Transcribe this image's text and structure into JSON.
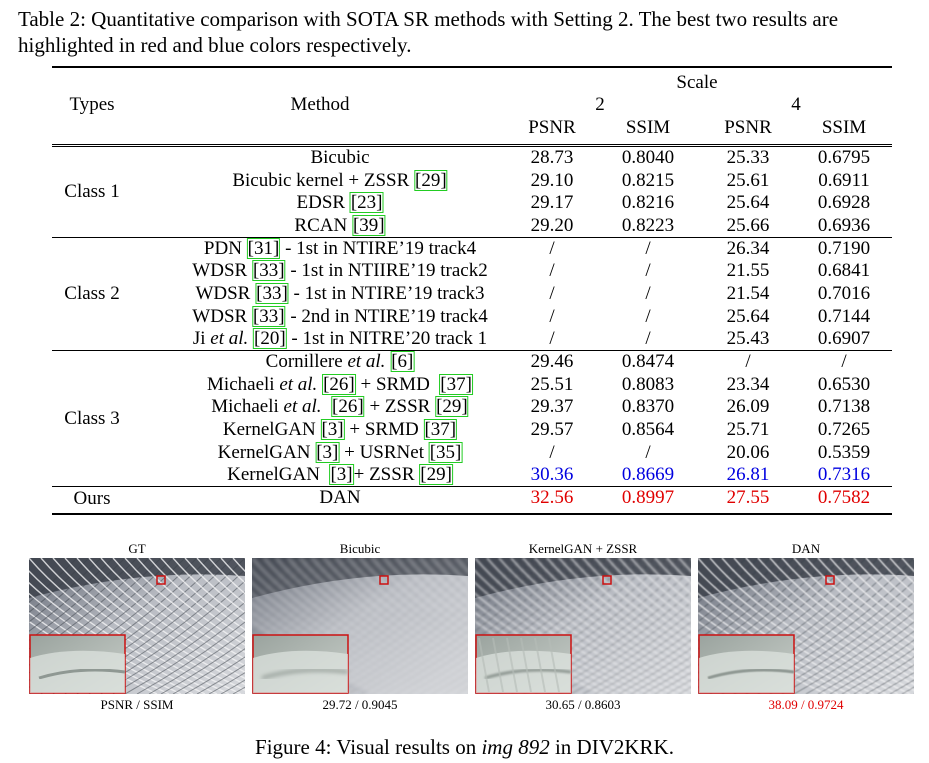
{
  "table_caption": "Table 2: Quantitative comparison with SOTA SR methods with Setting 2. The best two results are highlighted in red and blue colors respectively.",
  "header": {
    "types": "Types",
    "method": "Method",
    "scale": "Scale",
    "scale_values": [
      "2",
      "4"
    ],
    "metrics": [
      "PSNR",
      "SSIM",
      "PSNR",
      "SSIM"
    ]
  },
  "groups": [
    {
      "label": "Class 1",
      "rows": [
        {
          "method": [
            {
              "t": "Bicubic"
            }
          ],
          "values": [
            "28.73",
            "0.8040",
            "25.33",
            "0.6795"
          ]
        },
        {
          "method": [
            {
              "t": "Bicubic kernel + ZSSR "
            },
            {
              "t": "[29]",
              "cite": true
            }
          ],
          "values": [
            "29.10",
            "0.8215",
            "25.61",
            "0.6911"
          ]
        },
        {
          "method": [
            {
              "t": "EDSR "
            },
            {
              "t": "[23]",
              "cite": true
            }
          ],
          "values": [
            "29.17",
            "0.8216",
            "25.64",
            "0.6928"
          ]
        },
        {
          "method": [
            {
              "t": "RCAN "
            },
            {
              "t": "[39]",
              "cite": true
            }
          ],
          "values": [
            "29.20",
            "0.8223",
            "25.66",
            "0.6936"
          ]
        }
      ]
    },
    {
      "label": "Class 2",
      "rows": [
        {
          "method": [
            {
              "t": "PDN "
            },
            {
              "t": "[31]",
              "cite": true
            },
            {
              "t": " - 1st in NTIRE’19 track4"
            }
          ],
          "values": [
            "/",
            "/",
            "26.34",
            "0.7190"
          ]
        },
        {
          "method": [
            {
              "t": "WDSR "
            },
            {
              "t": "[33]",
              "cite": true
            },
            {
              "t": " - 1st in NTIIRE’19 track2"
            }
          ],
          "values": [
            "/",
            "/",
            "21.55",
            "0.6841"
          ]
        },
        {
          "method": [
            {
              "t": "WDSR "
            },
            {
              "t": "[33]",
              "cite": true
            },
            {
              "t": " - 1st in NTIRE’19 track3"
            }
          ],
          "values": [
            "/",
            "/",
            "21.54",
            "0.7016"
          ]
        },
        {
          "method": [
            {
              "t": "WDSR "
            },
            {
              "t": "[33]",
              "cite": true
            },
            {
              "t": " - 2nd in NTIRE’19 track4"
            }
          ],
          "values": [
            "/",
            "/",
            "25.64",
            "0.7144"
          ]
        },
        {
          "method": [
            {
              "t": "Ji "
            },
            {
              "t": "et al.",
              "it": true
            },
            {
              "t": " "
            },
            {
              "t": "[20]",
              "cite": true
            },
            {
              "t": " - 1st in NITRE’20 track 1"
            }
          ],
          "values": [
            "/",
            "/",
            "25.43",
            "0.6907"
          ]
        }
      ]
    },
    {
      "label": "Class 3",
      "rows": [
        {
          "method": [
            {
              "t": "Cornillere "
            },
            {
              "t": "et al.",
              "it": true
            },
            {
              "t": " "
            },
            {
              "t": "[6]",
              "cite": true
            }
          ],
          "values": [
            "29.46",
            "0.8474",
            "/",
            "/"
          ]
        },
        {
          "method": [
            {
              "t": "Michaeli "
            },
            {
              "t": "et al.",
              "it": true
            },
            {
              "t": " "
            },
            {
              "t": "[26]",
              "cite": true
            },
            {
              "t": " + SRMD  "
            },
            {
              "t": "[37]",
              "cite": true
            }
          ],
          "values": [
            "25.51",
            "0.8083",
            "23.34",
            "0.6530"
          ]
        },
        {
          "method": [
            {
              "t": "Michaeli "
            },
            {
              "t": "et al.",
              "it": true
            },
            {
              "t": "  "
            },
            {
              "t": "[26]",
              "cite": true
            },
            {
              "t": " + ZSSR "
            },
            {
              "t": "[29]",
              "cite": true
            }
          ],
          "values": [
            "29.37",
            "0.8370",
            "26.09",
            "0.7138"
          ]
        },
        {
          "method": [
            {
              "t": "KernelGAN "
            },
            {
              "t": "[3]",
              "cite": true
            },
            {
              "t": " + SRMD "
            },
            {
              "t": "[37]",
              "cite": true
            }
          ],
          "values": [
            "29.57",
            "0.8564",
            "25.71",
            "0.7265"
          ]
        },
        {
          "method": [
            {
              "t": "KernelGAN "
            },
            {
              "t": "[3]",
              "cite": true
            },
            {
              "t": " + USRNet "
            },
            {
              "t": "[35]",
              "cite": true
            }
          ],
          "values": [
            "/",
            "/",
            "20.06",
            "0.5359"
          ]
        },
        {
          "method": [
            {
              "t": "KernelGAN  "
            },
            {
              "t": "[3]",
              "cite": true
            },
            {
              "t": "+ ZSSR "
            },
            {
              "t": "[29]",
              "cite": true
            }
          ],
          "values": [
            "30.36",
            "0.8669",
            "26.81",
            "0.7316"
          ],
          "color": "blue"
        }
      ]
    },
    {
      "label": "Ours",
      "rows": [
        {
          "method": [
            {
              "t": "DAN"
            }
          ],
          "values": [
            "32.56",
            "0.8997",
            "27.55",
            "0.7582"
          ],
          "color": "red"
        }
      ]
    }
  ],
  "colors": {
    "best": "#e00000",
    "second": "#0000e0",
    "cite_box": "#22cc22",
    "zoom_box": "#cc1111"
  },
  "figure": {
    "panels": [
      {
        "title": "GT",
        "caption": "PSNR / SSIM",
        "blur": 0
      },
      {
        "title": "Bicubic",
        "caption": "29.72 / 0.9045",
        "blur": 2
      },
      {
        "title": "KernelGAN + ZSSR",
        "caption": "30.65 / 0.8603",
        "blur": 1,
        "noise": true
      },
      {
        "title": "DAN",
        "caption": "38.09 / 0.9724",
        "blur": 0.4,
        "caption_color": "red"
      }
    ],
    "caption_prefix": "Figure 4: Visual results on ",
    "caption_italic": "img 892",
    "caption_suffix": " in DIV2KRK."
  }
}
